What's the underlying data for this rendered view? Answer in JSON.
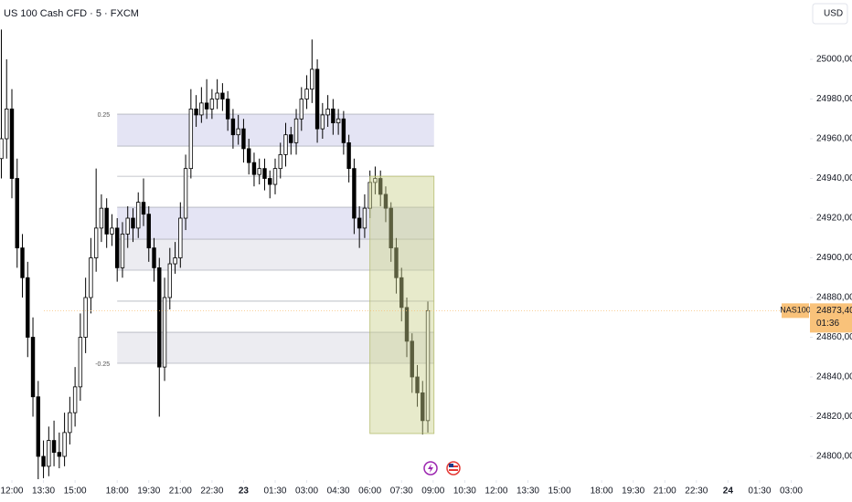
{
  "chart_data": {
    "type": "candlestick",
    "title": "US 100 Cash CFD · 5 · FXCM",
    "currency": "USD",
    "up_color": "#ffffff",
    "down_color": "#000000",
    "x": [
      -6,
      -3,
      0,
      3,
      6,
      9,
      12,
      15,
      18,
      21,
      24,
      27,
      30,
      33,
      36,
      39,
      42,
      45,
      48,
      51,
      54,
      57,
      60,
      63,
      66,
      69,
      72,
      75,
      78,
      81,
      84,
      87,
      90,
      93,
      96,
      99,
      102,
      105,
      108,
      111,
      114,
      117,
      120,
      123,
      126,
      129,
      132,
      135,
      138,
      141,
      144,
      147,
      150,
      153,
      156,
      159,
      162,
      165,
      168,
      171,
      174,
      177,
      180,
      183,
      186,
      189,
      192,
      195,
      198,
      201,
      204,
      207,
      210,
      213,
      216,
      219,
      222,
      225,
      228,
      231,
      234,
      237
    ],
    "open": [
      24950,
      24960,
      24975,
      24940,
      24905,
      24890,
      24860,
      24830,
      24800,
      24795,
      24808,
      24802,
      24800,
      24812,
      24822,
      24835,
      24860,
      24880,
      24900,
      24915,
      24925,
      24912,
      24915,
      24895,
      24912,
      24920,
      24915,
      24928,
      24922,
      24905,
      24895,
      24845,
      24880,
      24897,
      24900,
      24920,
      24945,
      24975,
      24972,
      24978,
      24975,
      24980,
      24983,
      24980,
      24970,
      24962,
      24965,
      24955,
      24948,
      24942,
      24945,
      24940,
      24937,
      24945,
      24952,
      24962,
      24958,
      24970,
      24980,
      24985,
      24995,
      24965,
      24972,
      24975,
      24968,
      24970,
      24958,
      24945,
      24920,
      24915,
      24925,
      24938,
      24940,
      24932,
      24925,
      24905,
      24890,
      24875,
      24858,
      24840,
      24832,
      24818
    ],
    "high": [
      25015,
      25000,
      24985,
      24950,
      24912,
      24898,
      24870,
      24838,
      24808,
      24815,
      24818,
      24812,
      24822,
      24830,
      24845,
      24872,
      24890,
      24910,
      24945,
      24932,
      24930,
      24922,
      24920,
      24918,
      24926,
      24925,
      24933,
      24940,
      24926,
      24910,
      24900,
      24890,
      24905,
      24908,
      24928,
      24952,
      24985,
      24982,
      24986,
      24990,
      24985,
      24990,
      24988,
      24984,
      24975,
      24972,
      24970,
      24960,
      24953,
      24950,
      24950,
      24944,
      24950,
      24958,
      24968,
      24966,
      24975,
      24986,
      24992,
      25010,
      25000,
      24978,
      24982,
      24980,
      24975,
      24974,
      24962,
      24950,
      24926,
      24932,
      24944,
      24946,
      24944,
      24936,
      24928,
      24910,
      24895,
      24880,
      24862,
      24846,
      24838,
      24878
    ],
    "low": [
      24940,
      24950,
      24930,
      24895,
      24880,
      24850,
      24820,
      24788,
      24789,
      24790,
      24795,
      24794,
      24795,
      24806,
      24815,
      24828,
      24852,
      24872,
      24893,
      24908,
      24905,
      24906,
      24888,
      24890,
      24905,
      24908,
      24910,
      24916,
      24898,
      24888,
      24820,
      24838,
      24874,
      24892,
      24895,
      24914,
      24940,
      24966,
      24968,
      24970,
      24970,
      24975,
      24974,
      24964,
      24955,
      24957,
      24948,
      24942,
      24936,
      24937,
      24934,
      24930,
      24932,
      24940,
      24946,
      24952,
      24952,
      24964,
      24975,
      24978,
      24958,
      24960,
      24966,
      24962,
      24962,
      24952,
      24938,
      24912,
      24905,
      24910,
      24920,
      24932,
      24926,
      24918,
      24898,
      24882,
      24868,
      24850,
      24832,
      24825,
      24811,
      24812
    ],
    "close": [
      24960,
      24975,
      24940,
      24905,
      24890,
      24860,
      24830,
      24800,
      24795,
      24808,
      24802,
      24800,
      24812,
      24822,
      24835,
      24860,
      24880,
      24900,
      24915,
      24925,
      24912,
      24915,
      24895,
      24912,
      24920,
      24915,
      24928,
      24922,
      24905,
      24895,
      24845,
      24880,
      24897,
      24900,
      24920,
      24945,
      24975,
      24972,
      24978,
      24975,
      24980,
      24983,
      24980,
      24970,
      24962,
      24965,
      24955,
      24948,
      24942,
      24945,
      24940,
      24937,
      24945,
      24952,
      24962,
      24958,
      24970,
      24980,
      24985,
      24995,
      24965,
      24972,
      24975,
      24968,
      24970,
      24958,
      24945,
      24920,
      24915,
      24925,
      24938,
      24940,
      24932,
      24925,
      24905,
      24890,
      24875,
      24858,
      24840,
      24832,
      24818,
      24873.4
    ],
    "xlim": [
      -6.77,
      454.17
    ],
    "ylim": [
      24788.5,
      25029.9
    ],
    "yticks": [
      {
        "value": 24800,
        "label": "24800,00"
      },
      {
        "value": 24820,
        "label": "24820,00"
      },
      {
        "value": 24840,
        "label": "24840,00"
      },
      {
        "value": 24860,
        "label": "24860,00"
      },
      {
        "value": 24880,
        "label": "24880,00"
      },
      {
        "value": 24900,
        "label": "24900,00"
      },
      {
        "value": 24920,
        "label": "24920,00"
      },
      {
        "value": 24940,
        "label": "24940,00"
      },
      {
        "value": 24960,
        "label": "24960,00"
      },
      {
        "value": 24980,
        "label": "24980,00"
      },
      {
        "value": 25000,
        "label": "25000,00"
      }
    ],
    "xticks": [
      {
        "value": 0,
        "label": "12:00"
      },
      {
        "value": 18,
        "label": "13:30"
      },
      {
        "value": 36,
        "label": "15:00"
      },
      {
        "value": 60,
        "label": "18:00"
      },
      {
        "value": 78,
        "label": "19:30"
      },
      {
        "value": 96,
        "label": "21:00"
      },
      {
        "value": 114,
        "label": "22:30"
      },
      {
        "value": 132,
        "label": "23"
      },
      {
        "value": 150,
        "label": "01:30"
      },
      {
        "value": 168,
        "label": "03:00"
      },
      {
        "value": 186,
        "label": "04:30"
      },
      {
        "value": 204,
        "label": "06:00"
      },
      {
        "value": 222,
        "label": "07:30"
      },
      {
        "value": 240,
        "label": "09:00"
      },
      {
        "value": 258,
        "label": "10:30"
      },
      {
        "value": 276,
        "label": "12:00"
      },
      {
        "value": 294,
        "label": "13:30"
      },
      {
        "value": 312,
        "label": "15:00"
      },
      {
        "value": 336,
        "label": "18:00"
      },
      {
        "value": 354,
        "label": "19:30"
      },
      {
        "value": 372,
        "label": "21:00"
      },
      {
        "value": 390,
        "label": "22:30"
      },
      {
        "value": 408,
        "label": "24"
      },
      {
        "value": 426,
        "label": "01:30"
      },
      {
        "value": 444,
        "label": "03:00"
      }
    ],
    "zones": {
      "x": [
        60,
        240.5
      ],
      "levels": [
        24972.4,
        24956.3,
        24941.1,
        24925.5,
        24909.4,
        24893.8,
        24878.2,
        24862.5,
        24846.9
      ],
      "fills": [
        "#e4e4f4",
        null,
        null,
        "#e4e4f4",
        "#ececf1",
        null,
        null,
        "#ececf1"
      ]
    },
    "level_labels": [
      {
        "value": 24972.4,
        "label": "0.25"
      },
      {
        "value": 24846.9,
        "label": "-0.25"
      }
    ],
    "range_box": {
      "x": [
        204,
        240.5
      ],
      "y": [
        24811.5,
        24941.1
      ],
      "color": "#c9d08c"
    },
    "last": {
      "name": "NAS100",
      "value": 24873.4,
      "label": "24873,40",
      "countdown": "01:36",
      "color": "#f9c27a"
    }
  }
}
